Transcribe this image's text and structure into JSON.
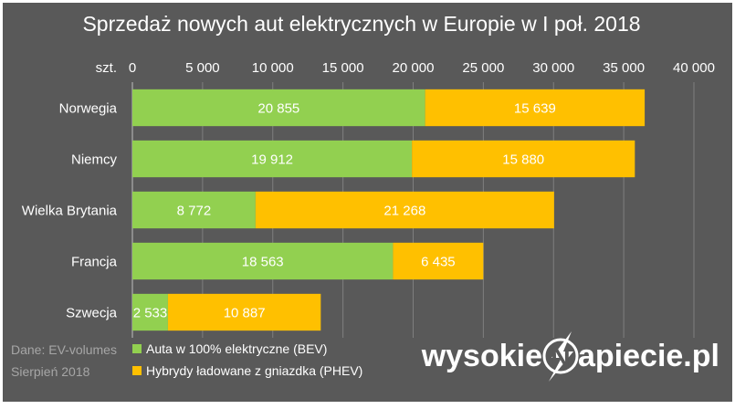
{
  "colors": {
    "background": "#595959",
    "frame": "#ffffff",
    "grid": "#7f7f7f",
    "text": "#ffffff",
    "source_text": "#a6a6a6",
    "bev": "#92d050",
    "phev": "#ffc000"
  },
  "chart_data": {
    "type": "bar",
    "orientation": "horizontal",
    "stacked": true,
    "title": "Sprzedaż nowych aut elektrycznych w Europie w I poł. 2018",
    "xlabel": "szt.",
    "xlim": [
      0,
      40000
    ],
    "x_ticks": [
      0,
      5000,
      10000,
      15000,
      20000,
      25000,
      30000,
      35000,
      40000
    ],
    "x_tick_labels": [
      "0",
      "5 000",
      "10 000",
      "15 000",
      "20 000",
      "25 000",
      "30 000",
      "35 000",
      "40 000"
    ],
    "grid": true,
    "legend_position": "bottom-left",
    "categories": [
      "Norwegia",
      "Niemcy",
      "Wielka Brytania",
      "Francja",
      "Szwecja"
    ],
    "series": [
      {
        "name": "Auta w 100% elektryczne (BEV)",
        "color": "#92d050",
        "values": [
          20855,
          19912,
          8772,
          18563,
          2533
        ],
        "labels": [
          "20 855",
          "19 912",
          "8 772",
          "18 563",
          "2 533"
        ]
      },
      {
        "name": "Hybrydy ładowane z gniazdka (PHEV)",
        "color": "#ffc000",
        "values": [
          15639,
          15880,
          21268,
          6435,
          10887
        ],
        "labels": [
          "15 639",
          "15 880",
          "21 268",
          "6 435",
          "10 887"
        ]
      }
    ]
  },
  "source": {
    "line1": "Dane: EV-volumes",
    "line2": "Sierpień 2018"
  },
  "logo": {
    "text_before": "wysokie",
    "letter": "N",
    "text_after": "apiecie.pl"
  }
}
